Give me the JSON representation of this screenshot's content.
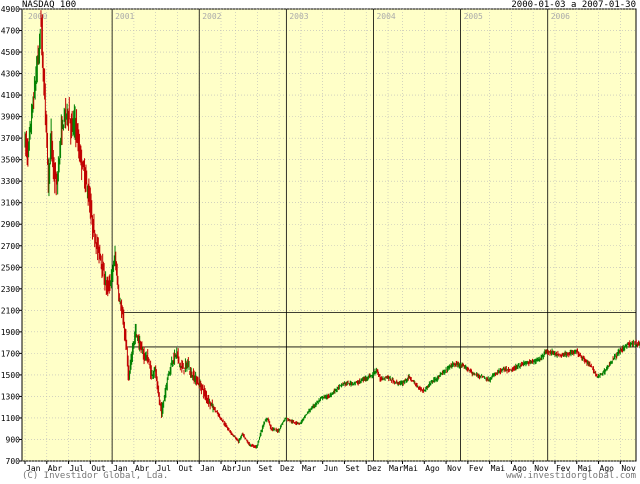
{
  "chart_data": {
    "type": "candlestick",
    "title": "NASDAQ 100",
    "date_range": "2000-01-03 a 2007-01-30",
    "credit_left": "(C) Investidor Global, Lda.",
    "credit_right": "www.investidorglobal.com",
    "grid": "on",
    "background_color": "#ffffc8",
    "up_color": "#008000",
    "down_color": "#c00000",
    "ylim": [
      700,
      4900
    ],
    "y_ticks": [
      700,
      900,
      1100,
      1300,
      1500,
      1700,
      1900,
      2100,
      2300,
      2500,
      2700,
      2900,
      3100,
      3300,
      3500,
      3700,
      3900,
      4100,
      4300,
      4500,
      4700,
      4900
    ],
    "year_labels": [
      {
        "label": "2000",
        "month_index": 0
      },
      {
        "label": "2001",
        "month_index": 12
      },
      {
        "label": "2002",
        "month_index": 24
      },
      {
        "label": "2003",
        "month_index": 36
      },
      {
        "label": "2004",
        "month_index": 48
      },
      {
        "label": "2005",
        "month_index": 60
      },
      {
        "label": "2006",
        "month_index": 72
      }
    ],
    "x_ticks": [
      {
        "label": "Jan",
        "month_index": 0
      },
      {
        "label": "Abr",
        "month_index": 3
      },
      {
        "label": "Jul",
        "month_index": 6
      },
      {
        "label": "Out",
        "month_index": 9
      },
      {
        "label": "Jan",
        "month_index": 12
      },
      {
        "label": "Abr",
        "month_index": 15
      },
      {
        "label": "Jul",
        "month_index": 18
      },
      {
        "label": "Out",
        "month_index": 21
      },
      {
        "label": "Jan",
        "month_index": 24
      },
      {
        "label": "Abr",
        "month_index": 27
      },
      {
        "label": "Jun",
        "month_index": 29
      },
      {
        "label": "Set",
        "month_index": 32
      },
      {
        "label": "Dez",
        "month_index": 35
      },
      {
        "label": "Mar",
        "month_index": 38
      },
      {
        "label": "Jun",
        "month_index": 41
      },
      {
        "label": "Set",
        "month_index": 44
      },
      {
        "label": "Dez",
        "month_index": 47
      },
      {
        "label": "Mar",
        "month_index": 50
      },
      {
        "label": "Mai",
        "month_index": 52
      },
      {
        "label": "Ago",
        "month_index": 55
      },
      {
        "label": "Nov",
        "month_index": 58
      },
      {
        "label": "Fev",
        "month_index": 61
      },
      {
        "label": "Mai",
        "month_index": 64
      },
      {
        "label": "Ago",
        "month_index": 67
      },
      {
        "label": "Nov",
        "month_index": 70
      },
      {
        "label": "Fev",
        "month_index": 73
      },
      {
        "label": "Mai",
        "month_index": 76
      },
      {
        "label": "Ago",
        "month_index": 79
      },
      {
        "label": "Nov",
        "month_index": 82
      }
    ],
    "horizontal_lines": [
      {
        "value": 2080,
        "start_month_index": 13.5
      },
      {
        "value": 1760,
        "start_month_index": 14.2
      }
    ],
    "series": [
      {
        "name": "NASDAQ 100",
        "points": [
          [
            0,
            3700
          ],
          [
            0.5,
            3550
          ],
          [
            1,
            3900
          ],
          [
            1.5,
            4200
          ],
          [
            2,
            4500
          ],
          [
            2.3,
            4800
          ],
          [
            2.6,
            4300
          ],
          [
            3,
            3900
          ],
          [
            3.3,
            3300
          ],
          [
            3.7,
            3700
          ],
          [
            4,
            3400
          ],
          [
            4.5,
            3250
          ],
          [
            5,
            3700
          ],
          [
            5.5,
            3900
          ],
          [
            6,
            3950
          ],
          [
            6.5,
            3800
          ],
          [
            7,
            3850
          ],
          [
            7.5,
            3600
          ],
          [
            8,
            3450
          ],
          [
            8.5,
            3300
          ],
          [
            9,
            3100
          ],
          [
            9.5,
            2850
          ],
          [
            10,
            2700
          ],
          [
            10.5,
            2600
          ],
          [
            11,
            2400
          ],
          [
            11.5,
            2300
          ],
          [
            12,
            2400
          ],
          [
            12.5,
            2600
          ],
          [
            13,
            2250
          ],
          [
            13.5,
            2050
          ],
          [
            14,
            1800
          ],
          [
            14.4,
            1450
          ],
          [
            14.8,
            1700
          ],
          [
            15.3,
            1900
          ],
          [
            15.8,
            1800
          ],
          [
            16.3,
            1700
          ],
          [
            17,
            1650
          ],
          [
            17.5,
            1500
          ],
          [
            18,
            1550
          ],
          [
            18.5,
            1300
          ],
          [
            18.9,
            1150
          ],
          [
            19.3,
            1300
          ],
          [
            19.8,
            1500
          ],
          [
            20.5,
            1650
          ],
          [
            21,
            1700
          ],
          [
            21.5,
            1580
          ],
          [
            22,
            1560
          ],
          [
            22.5,
            1600
          ],
          [
            23,
            1500
          ],
          [
            23.5,
            1470
          ],
          [
            24,
            1420
          ],
          [
            24.5,
            1380
          ],
          [
            25,
            1300
          ],
          [
            25.5,
            1250
          ],
          [
            26,
            1200
          ],
          [
            27,
            1100
          ],
          [
            28,
            1000
          ],
          [
            29,
            920
          ],
          [
            29.5,
            880
          ],
          [
            30,
            950
          ],
          [
            31,
            850
          ],
          [
            32,
            830
          ],
          [
            32.5,
            950
          ],
          [
            33,
            1050
          ],
          [
            33.5,
            1100
          ],
          [
            34,
            1000
          ],
          [
            35,
            980
          ],
          [
            35.5,
            1050
          ],
          [
            36,
            1100
          ],
          [
            37,
            1060
          ],
          [
            38,
            1050
          ],
          [
            39,
            1150
          ],
          [
            40,
            1220
          ],
          [
            41,
            1290
          ],
          [
            42,
            1300
          ],
          [
            43,
            1370
          ],
          [
            44,
            1420
          ],
          [
            45,
            1420
          ],
          [
            46,
            1430
          ],
          [
            47,
            1470
          ],
          [
            48,
            1500
          ],
          [
            48.5,
            1550
          ],
          [
            49,
            1460
          ],
          [
            50,
            1480
          ],
          [
            51,
            1430
          ],
          [
            52,
            1420
          ],
          [
            53,
            1480
          ],
          [
            54,
            1400
          ],
          [
            55,
            1350
          ],
          [
            56,
            1430
          ],
          [
            57,
            1480
          ],
          [
            58,
            1540
          ],
          [
            59,
            1600
          ],
          [
            60,
            1590
          ],
          [
            61,
            1560
          ],
          [
            62,
            1500
          ],
          [
            63,
            1490
          ],
          [
            64,
            1450
          ],
          [
            65,
            1520
          ],
          [
            66,
            1550
          ],
          [
            67,
            1540
          ],
          [
            68,
            1580
          ],
          [
            69,
            1610
          ],
          [
            70,
            1620
          ],
          [
            71,
            1650
          ],
          [
            72,
            1720
          ],
          [
            73,
            1700
          ],
          [
            74,
            1680
          ],
          [
            75,
            1700
          ],
          [
            76,
            1720
          ],
          [
            77,
            1650
          ],
          [
            78,
            1580
          ],
          [
            79,
            1480
          ],
          [
            80,
            1540
          ],
          [
            81,
            1640
          ],
          [
            82,
            1720
          ],
          [
            83,
            1780
          ],
          [
            84,
            1790
          ],
          [
            84.9,
            1780
          ]
        ]
      }
    ]
  }
}
